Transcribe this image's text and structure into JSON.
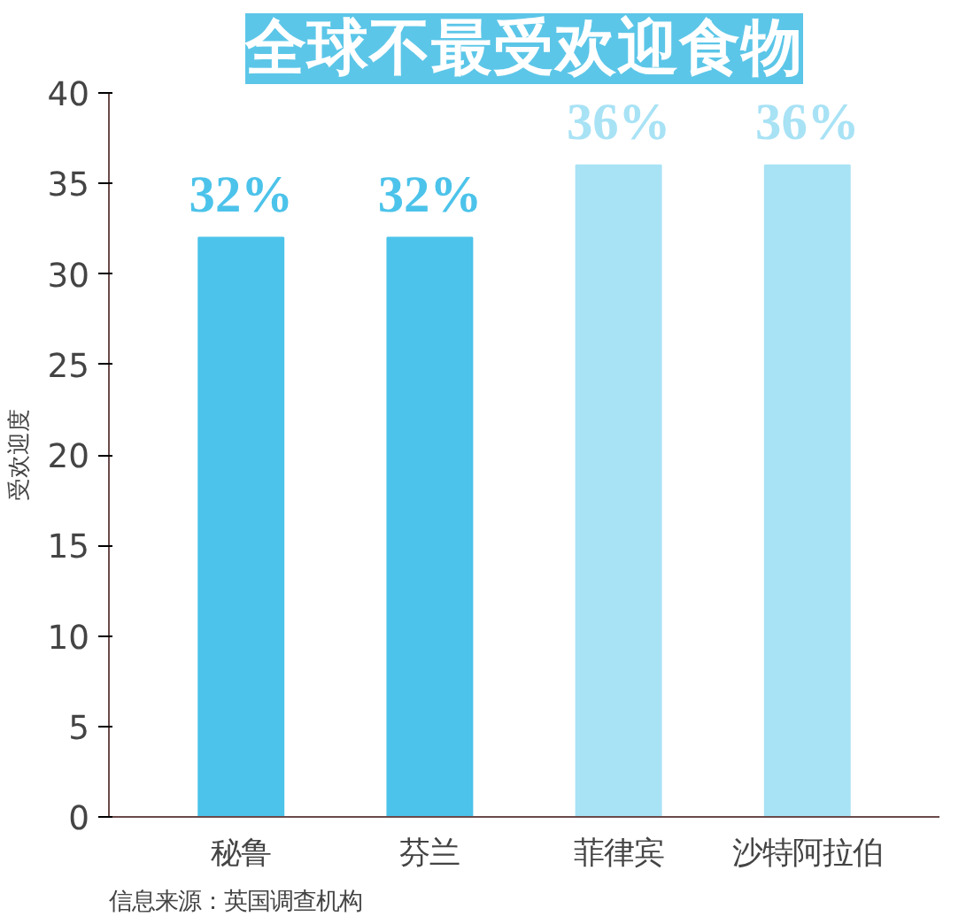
{
  "chart_data": {
    "type": "bar",
    "title": "全球不最受欢迎食物",
    "ylabel": "受欢迎度",
    "categories": [
      "秘鲁",
      "芬兰",
      "菲律宾",
      "沙特阿拉伯"
    ],
    "values": [
      32,
      32,
      36,
      36
    ],
    "colors": [
      "#4cc3ea",
      "#4cc3ea",
      "#a8e2f5",
      "#a8e2f5"
    ],
    "value_labels": [
      "32%",
      "32%",
      "36%",
      "36%"
    ],
    "ylim": [
      0,
      40
    ],
    "yticks": [
      0,
      5,
      10,
      15,
      20,
      25,
      30,
      35,
      40
    ],
    "grid": false,
    "annotations": [
      "信息来源：英国调查机构"
    ]
  }
}
